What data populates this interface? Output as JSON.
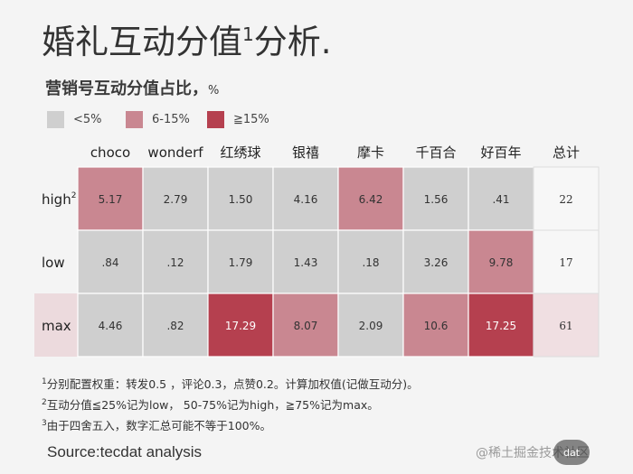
{
  "page": {
    "title": "婚礼互动分值",
    "title_sup": "1",
    "title_suffix": "分析."
  },
  "chart_data": {
    "type": "heatmap",
    "title": "营销号互动分值占比，",
    "unit": "%",
    "columns": [
      "choco",
      "wonderf",
      "红绣球",
      "银禧",
      "摩卡",
      "千百合",
      "好百年",
      "总计"
    ],
    "rows": [
      {
        "label": "high",
        "label_sup": "2",
        "values": [
          "5.17",
          "2.79",
          "1.50",
          "4.16",
          "6.42",
          "1.56",
          ".41"
        ],
        "total": "22",
        "highlight": false
      },
      {
        "label": "low",
        "label_sup": "",
        "values": [
          ".84",
          ".12",
          "1.79",
          "1.43",
          ".18",
          "3.26",
          "9.78"
        ],
        "total": "17",
        "highlight": false
      },
      {
        "label": "max",
        "label_sup": "",
        "values": [
          "4.46",
          ".82",
          "17.29",
          "8.07",
          "2.09",
          "10.6",
          "17.25"
        ],
        "total": "61",
        "highlight": true
      }
    ],
    "legend": [
      {
        "label": "<5%",
        "color": "#cfcfcf"
      },
      {
        "label": "6-15%",
        "color": "#c98791"
      },
      {
        "label": "≧15%",
        "color": "#b5404f"
      }
    ],
    "thresholds": [
      5,
      15
    ],
    "colors": {
      "low": "#cfcfcf",
      "mid": "#c98791",
      "high": "#b5404f",
      "total_bg": "#f7f7f7",
      "row_highlight": "#ecdadd",
      "total_highlight": "#f0dfe2",
      "grid": "#ffffff"
    }
  },
  "footnotes": [
    {
      "sup": "1",
      "text": "分别配置权重：转发0.5 ，评论0.3，点赞0.2。计算加权值(记做互动分)。"
    },
    {
      "sup": "2",
      "text": "互动分值≦25%记为low， 50-75%记为high，≧75%记为max。"
    },
    {
      "sup": "3",
      "text": "由于四舍五入，数字汇总可能不等于100%。"
    }
  ],
  "source": {
    "label": "Source:",
    "value": "tecdat analysis"
  },
  "watermark": {
    "text": "@稀土掘金技术社区",
    "badge": "dat"
  }
}
